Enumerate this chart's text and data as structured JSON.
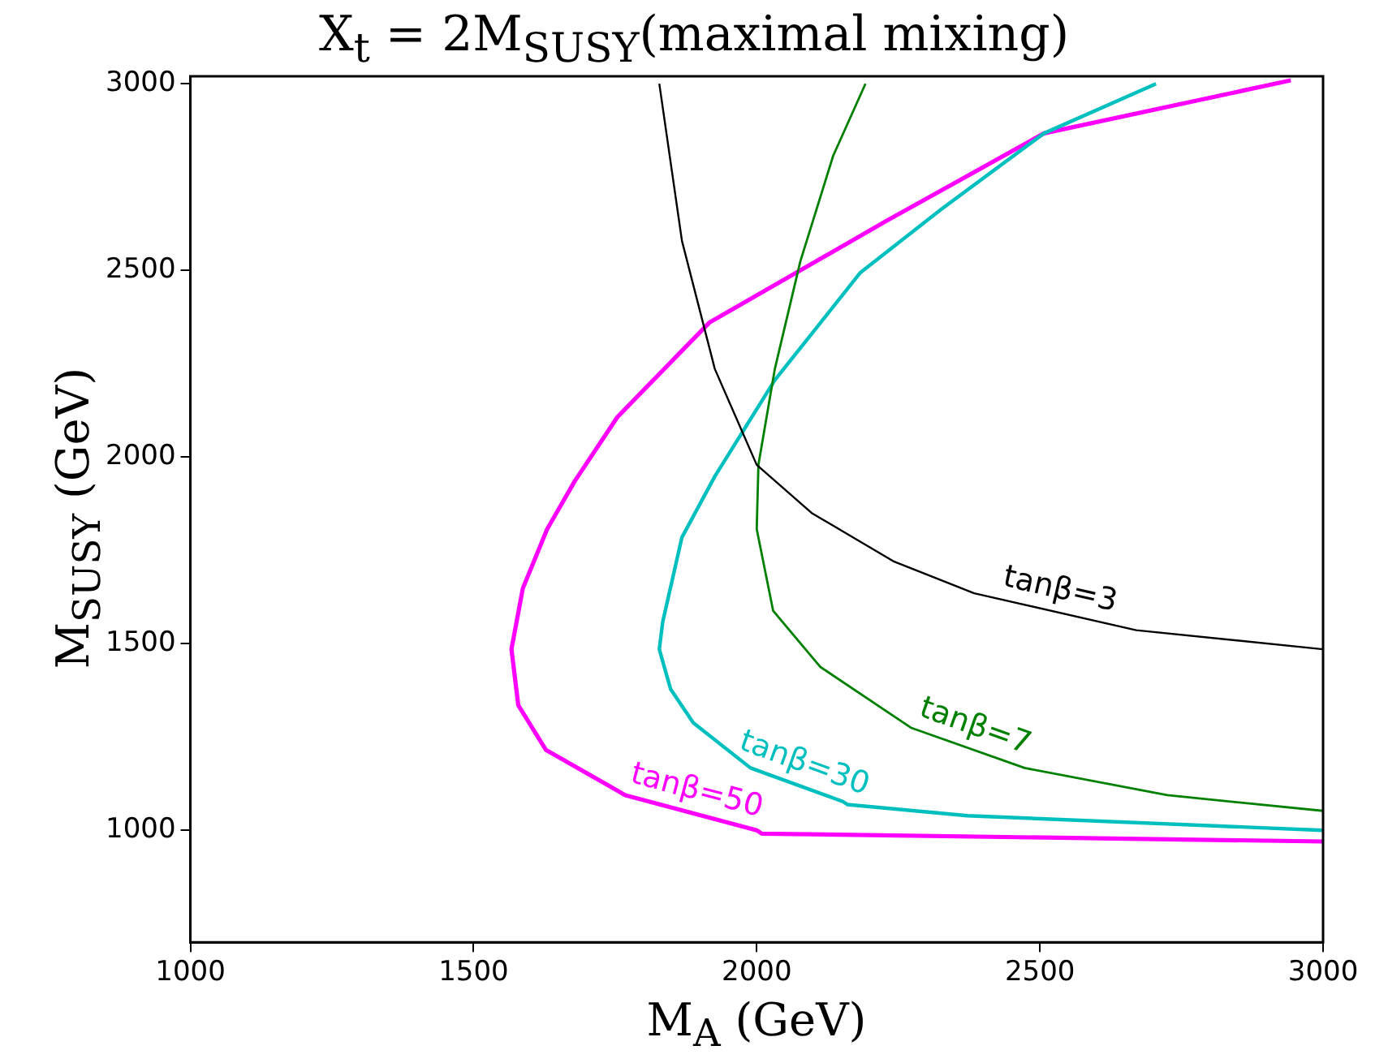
{
  "chart_data": {
    "type": "line",
    "title": "X$_{t}$ = 2M$_{SUSY}$(maximal mixing)",
    "xlabel": "M$_{A}$ (GeV)",
    "ylabel": "M$_{SUSY}$ (GeV)",
    "xlim": [
      1000,
      3000
    ],
    "xticks": [
      1000,
      1500,
      2000,
      2500,
      3000
    ],
    "ylim": [
      700,
      3020
    ],
    "yticks": [
      1000,
      1500,
      2000,
      2500,
      3000
    ],
    "grid": false,
    "legend": false,
    "marker": "none",
    "series": [
      {
        "name": "tanβ=3",
        "color": "#000000",
        "x": [
          1828,
          1868,
          1926,
          2000,
          2097,
          2241,
          2384,
          2670,
          3000
        ],
        "values": [
          3000,
          2579,
          2236,
          1979,
          1850,
          1721,
          1635,
          1536,
          1485
        ]
      },
      {
        "name": "tanβ=7",
        "color": "#008000",
        "x": [
          2192,
          2135,
          2077,
          2032,
          2003,
          2000,
          2029,
          2112,
          2272,
          2473,
          2725,
          3000
        ],
        "values": [
          3000,
          2807,
          2524,
          2236,
          1979,
          1807,
          1588,
          1438,
          1275,
          1167,
          1094,
          1052
        ]
      },
      {
        "name": "tanβ=30",
        "color": "#00bfbf",
        "x": [
          2705,
          2507,
          2327,
          2183,
          2032,
          1926,
          1868,
          1834,
          1828,
          1848,
          1888,
          1989,
          2152,
          2160,
          2372,
          3000
        ],
        "values": [
          3000,
          2867,
          2665,
          2494,
          2206,
          1948,
          1785,
          1558,
          1485,
          1378,
          1288,
          1167,
          1077,
          1069,
          1039,
          1000
        ]
      },
      {
        "name": "tanβ=50",
        "color": "#ff00ff",
        "x": [
          2943,
          2507,
          2232,
          1917,
          1754,
          1679,
          1630,
          1587,
          1567,
          1579,
          1628,
          1768,
          2000,
          2009,
          3000
        ],
        "values": [
          3009,
          2867,
          2635,
          2361,
          2107,
          1936,
          1807,
          1648,
          1485,
          1335,
          1215,
          1094,
          1000,
          991,
          970
        ]
      }
    ]
  }
}
